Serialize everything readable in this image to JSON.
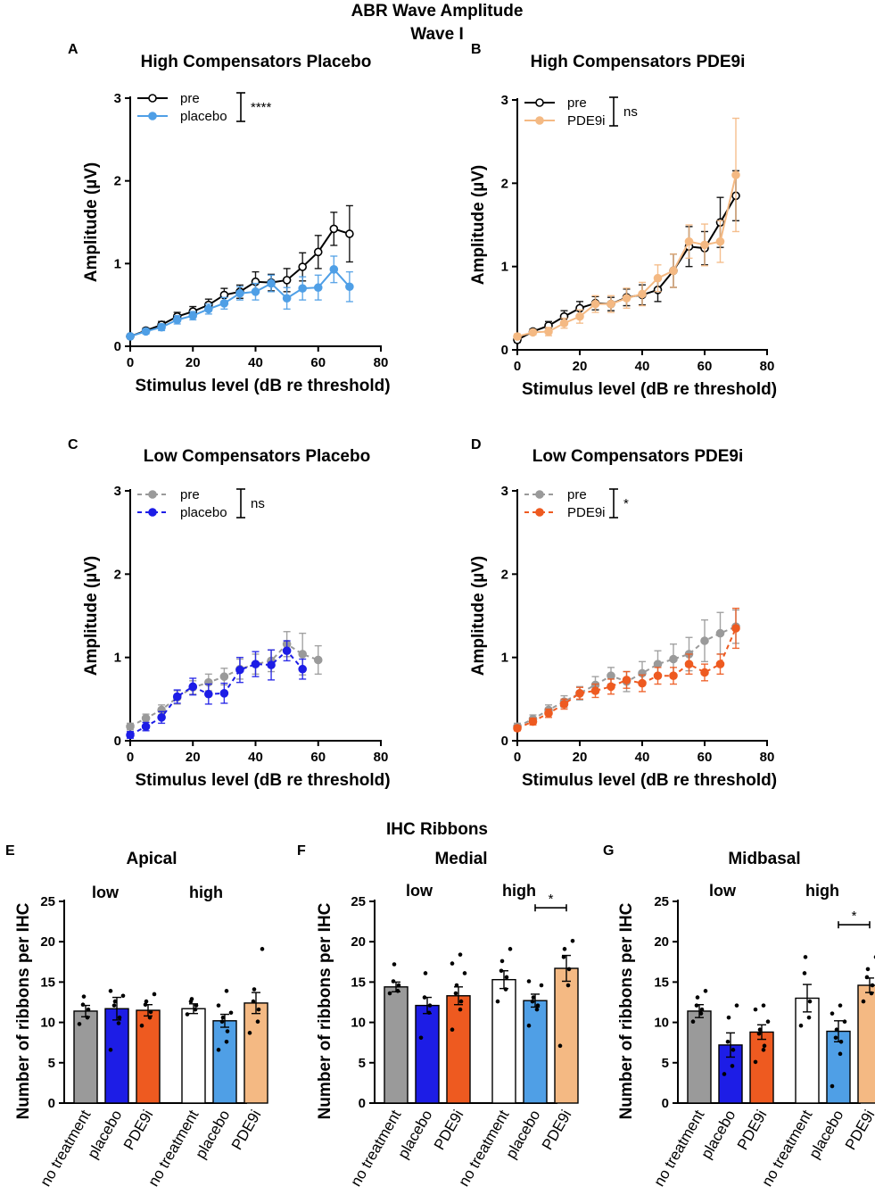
{
  "figure": {
    "title": "ABR Wave Amplitude",
    "subtitle": "Wave I",
    "ribbons_title": "IHC Ribbons"
  },
  "chart_data": [
    {
      "id": "A",
      "panel_letter": "A",
      "type": "line",
      "title": "High Compensators Placebo",
      "xlabel": "Stimulus level (dB re threshold)",
      "ylabel": "Amplitude (µV)",
      "xlim": [
        0,
        80
      ],
      "ylim": [
        0,
        3
      ],
      "xticks": [
        0,
        20,
        40,
        60,
        80
      ],
      "yticks": [
        0,
        1,
        2,
        3
      ],
      "significance": "****",
      "series": [
        {
          "name": "pre",
          "color": "#000000",
          "marker": "open",
          "dashed": false,
          "x": [
            0,
            5,
            10,
            15,
            20,
            25,
            30,
            35,
            40,
            45,
            50,
            55,
            60,
            65,
            70
          ],
          "y": [
            0.12,
            0.19,
            0.26,
            0.36,
            0.42,
            0.5,
            0.62,
            0.66,
            0.78,
            0.77,
            0.8,
            0.96,
            1.14,
            1.42,
            1.36
          ],
          "err": [
            0.02,
            0.03,
            0.04,
            0.05,
            0.06,
            0.07,
            0.08,
            0.08,
            0.12,
            0.1,
            0.14,
            0.17,
            0.2,
            0.2,
            0.34
          ]
        },
        {
          "name": "placebo",
          "color": "#4f9fe6",
          "marker": "filled",
          "dashed": false,
          "x": [
            0,
            5,
            10,
            15,
            20,
            25,
            30,
            35,
            40,
            45,
            50,
            55,
            60,
            65,
            70
          ],
          "y": [
            0.12,
            0.18,
            0.23,
            0.32,
            0.37,
            0.45,
            0.52,
            0.64,
            0.66,
            0.76,
            0.58,
            0.7,
            0.71,
            0.93,
            0.72
          ],
          "err": [
            0.02,
            0.03,
            0.04,
            0.05,
            0.05,
            0.06,
            0.07,
            0.08,
            0.1,
            0.1,
            0.13,
            0.14,
            0.15,
            0.16,
            0.18
          ]
        }
      ]
    },
    {
      "id": "B",
      "panel_letter": "B",
      "type": "line",
      "title": "High Compensators PDE9i",
      "xlabel": "Stimulus level (dB re threshold)",
      "ylabel": "Amplitude (µV)",
      "xlim": [
        0,
        80
      ],
      "ylim": [
        0,
        3
      ],
      "xticks": [
        0,
        20,
        40,
        60,
        80
      ],
      "yticks": [
        0,
        1,
        2,
        3
      ],
      "significance": "ns",
      "series": [
        {
          "name": "pre",
          "color": "#000000",
          "marker": "open",
          "dashed": false,
          "x": [
            0,
            5,
            10,
            15,
            20,
            25,
            30,
            35,
            40,
            45,
            50,
            55,
            60,
            65,
            70
          ],
          "y": [
            0.12,
            0.22,
            0.29,
            0.4,
            0.5,
            0.56,
            0.55,
            0.63,
            0.66,
            0.72,
            0.95,
            1.24,
            1.22,
            1.53,
            1.85
          ],
          "err": [
            0.03,
            0.03,
            0.05,
            0.07,
            0.08,
            0.08,
            0.08,
            0.1,
            0.12,
            0.14,
            0.2,
            0.24,
            0.2,
            0.3,
            0.3
          ]
        },
        {
          "name": "PDE9i",
          "color": "#f4b983",
          "marker": "filled",
          "dashed": false,
          "x": [
            0,
            5,
            10,
            15,
            20,
            25,
            30,
            35,
            40,
            45,
            50,
            55,
            60,
            65,
            70
          ],
          "y": [
            0.16,
            0.21,
            0.22,
            0.32,
            0.4,
            0.55,
            0.55,
            0.62,
            0.67,
            0.86,
            0.95,
            1.3,
            1.26,
            1.3,
            2.1
          ],
          "err": [
            0.03,
            0.03,
            0.05,
            0.06,
            0.08,
            0.1,
            0.1,
            0.12,
            0.14,
            0.16,
            0.2,
            0.2,
            0.25,
            0.25,
            0.68
          ]
        }
      ]
    },
    {
      "id": "C",
      "panel_letter": "C",
      "type": "line",
      "title": "Low Compensators Placebo",
      "xlabel": "Stimulus level (dB re threshold)",
      "ylabel": "Amplitude (µV)",
      "xlim": [
        0,
        80
      ],
      "ylim": [
        0,
        3
      ],
      "xticks": [
        0,
        20,
        40,
        60,
        80
      ],
      "yticks": [
        0,
        1,
        2,
        3
      ],
      "significance": "ns",
      "series": [
        {
          "name": "pre",
          "color": "#9a9a9a",
          "marker": "filled",
          "dashed": true,
          "x": [
            0,
            5,
            10,
            15,
            20,
            25,
            30,
            35,
            40,
            45,
            50,
            55,
            60
          ],
          "y": [
            0.17,
            0.27,
            0.37,
            0.52,
            0.64,
            0.7,
            0.77,
            0.86,
            0.92,
            0.96,
            1.16,
            1.04,
            0.97
          ],
          "err": [
            0.04,
            0.05,
            0.06,
            0.08,
            0.08,
            0.1,
            0.1,
            0.12,
            0.12,
            0.13,
            0.15,
            0.25,
            0.17
          ]
        },
        {
          "name": "placebo",
          "color": "#1d1de6",
          "marker": "filled",
          "dashed": true,
          "x": [
            0,
            5,
            10,
            15,
            20,
            25,
            30,
            35,
            40,
            45,
            50,
            55
          ],
          "y": [
            0.07,
            0.17,
            0.28,
            0.53,
            0.65,
            0.56,
            0.57,
            0.85,
            0.92,
            0.91,
            1.08,
            0.86
          ],
          "err": [
            0.04,
            0.05,
            0.07,
            0.08,
            0.1,
            0.12,
            0.12,
            0.15,
            0.15,
            0.18,
            0.12,
            0.12
          ]
        }
      ]
    },
    {
      "id": "D",
      "panel_letter": "D",
      "type": "line",
      "title": "Low Compensators PDE9i",
      "xlabel": "Stimulus level (dB re threshold)",
      "ylabel": "Amplitude (µV)",
      "xlim": [
        0,
        80
      ],
      "ylim": [
        0,
        3
      ],
      "xticks": [
        0,
        20,
        40,
        60,
        80
      ],
      "yticks": [
        0,
        1,
        2,
        3
      ],
      "significance": "*",
      "series": [
        {
          "name": "pre",
          "color": "#9a9a9a",
          "marker": "filled",
          "dashed": true,
          "x": [
            0,
            5,
            10,
            15,
            20,
            25,
            30,
            35,
            40,
            45,
            50,
            55,
            60,
            65,
            70
          ],
          "y": [
            0.17,
            0.26,
            0.37,
            0.47,
            0.57,
            0.67,
            0.78,
            0.71,
            0.81,
            0.92,
            0.98,
            1.04,
            1.2,
            1.29,
            1.37
          ],
          "err": [
            0.04,
            0.05,
            0.06,
            0.07,
            0.08,
            0.1,
            0.1,
            0.12,
            0.14,
            0.16,
            0.18,
            0.2,
            0.25,
            0.25,
            0.2
          ]
        },
        {
          "name": "PDE9i",
          "color": "#ee5a20",
          "marker": "filled",
          "dashed": true,
          "x": [
            0,
            5,
            10,
            15,
            20,
            25,
            30,
            35,
            40,
            45,
            50,
            55,
            60,
            65,
            70
          ],
          "y": [
            0.15,
            0.23,
            0.33,
            0.44,
            0.57,
            0.6,
            0.65,
            0.73,
            0.69,
            0.78,
            0.78,
            0.92,
            0.82,
            0.92,
            1.35
          ],
          "err": [
            0.03,
            0.04,
            0.05,
            0.06,
            0.07,
            0.08,
            0.09,
            0.1,
            0.1,
            0.1,
            0.1,
            0.12,
            0.1,
            0.12,
            0.24
          ]
        }
      ]
    },
    {
      "id": "E",
      "panel_letter": "E",
      "type": "bar",
      "title": "Apical",
      "ylabel": "Number of ribbons per IHC",
      "ylim": [
        0,
        25
      ],
      "yticks": [
        0,
        5,
        10,
        15,
        20,
        25
      ],
      "groups": [
        "low",
        "high"
      ],
      "categories": [
        "no treatment",
        "placebo",
        "PDE9i",
        "no treatment",
        "placebo",
        "PDE9i"
      ],
      "colors": [
        "#9a9a9a",
        "#1d1de6",
        "#ee5a20",
        "#ffffff",
        "#4f9fe6",
        "#f4b983"
      ],
      "values": [
        11.4,
        11.7,
        11.5,
        11.7,
        10.2,
        12.4
      ],
      "err": [
        0.7,
        1.4,
        0.7,
        0.6,
        0.8,
        1.3
      ],
      "points": [
        [
          9.8,
          10.6,
          11.6,
          12.2,
          13.2
        ],
        [
          6.6,
          9.9,
          10.6,
          12.1,
          12.6,
          13.3,
          13.9
        ],
        [
          9.6,
          10.6,
          11.3,
          12.2,
          12.6,
          13.5
        ],
        [
          11,
          11.6,
          12.1,
          12.6,
          12.9
        ],
        [
          6.6,
          7.6,
          8.9,
          10.1,
          10.6,
          11.2,
          12.1,
          13.9
        ],
        [
          8.7,
          10.1,
          11.6,
          12.6,
          14.1,
          19.1
        ]
      ],
      "brackets": []
    },
    {
      "id": "F",
      "panel_letter": "F",
      "type": "bar",
      "title": "Medial",
      "ylabel": "Number of ribbons per IHC",
      "ylim": [
        0,
        25
      ],
      "yticks": [
        0,
        5,
        10,
        15,
        20,
        25
      ],
      "groups": [
        "low",
        "high"
      ],
      "categories": [
        "no treatment",
        "placebo",
        "PDE9i",
        "no treatment",
        "placebo",
        "PDE9i"
      ],
      "colors": [
        "#9a9a9a",
        "#1d1de6",
        "#ee5a20",
        "#ffffff",
        "#4f9fe6",
        "#f4b983"
      ],
      "values": [
        14.4,
        12.1,
        13.3,
        15.3,
        12.7,
        16.7
      ],
      "err": [
        0.6,
        1.0,
        1.1,
        1.1,
        0.8,
        1.6
      ],
      "points": [
        [
          13.6,
          13.9,
          14.6,
          15.1,
          17.2
        ],
        [
          8.1,
          11.2,
          12.1,
          13.1,
          16.1
        ],
        [
          9.1,
          11.6,
          12.6,
          13.6,
          14.6,
          16.1,
          17.3,
          18.4
        ],
        [
          12.6,
          14.1,
          15.6,
          16.4,
          17.6,
          19.1
        ],
        [
          9.6,
          11.6,
          12.1,
          12.6,
          13.1,
          14.6,
          15.1
        ],
        [
          7.1,
          14.6,
          16.6,
          18.1,
          19.1,
          20.1
        ]
      ],
      "brackets": [
        {
          "from": 4,
          "to": 5,
          "label": "*"
        }
      ]
    },
    {
      "id": "G",
      "panel_letter": "G",
      "type": "bar",
      "title": "Midbasal",
      "ylabel": "Number of ribbons per IHC",
      "ylim": [
        0,
        25
      ],
      "yticks": [
        0,
        5,
        10,
        15,
        20,
        25
      ],
      "groups": [
        "low",
        "high"
      ],
      "categories": [
        "no treatment",
        "placebo",
        "PDE9i",
        "no treatment",
        "placebo",
        "PDE9i"
      ],
      "colors": [
        "#9a9a9a",
        "#1d1de6",
        "#ee5a20",
        "#ffffff",
        "#4f9fe6",
        "#f4b983"
      ],
      "values": [
        11.4,
        7.2,
        8.8,
        13.0,
        8.9,
        14.6
      ],
      "err": [
        0.8,
        1.5,
        0.9,
        1.7,
        1.3,
        0.9
      ],
      "points": [
        [
          10.1,
          11.1,
          11.6,
          12.1,
          13.1,
          13.9
        ],
        [
          3.6,
          4.6,
          6.6,
          7.6,
          10.6,
          12.1
        ],
        [
          5.1,
          6.6,
          7.1,
          8.6,
          9.1,
          10.1,
          11.6,
          12.1
        ],
        [
          9.6,
          10.6,
          12.6,
          16.1,
          18.1
        ],
        [
          2.1,
          6.1,
          7.6,
          8.1,
          9.1,
          10.1,
          11.1,
          12.1
        ],
        [
          12.6,
          13.6,
          14.6,
          15.6,
          16.6,
          18.1
        ]
      ],
      "brackets": [
        {
          "from": 4,
          "to": 5,
          "label": "*"
        }
      ]
    }
  ]
}
